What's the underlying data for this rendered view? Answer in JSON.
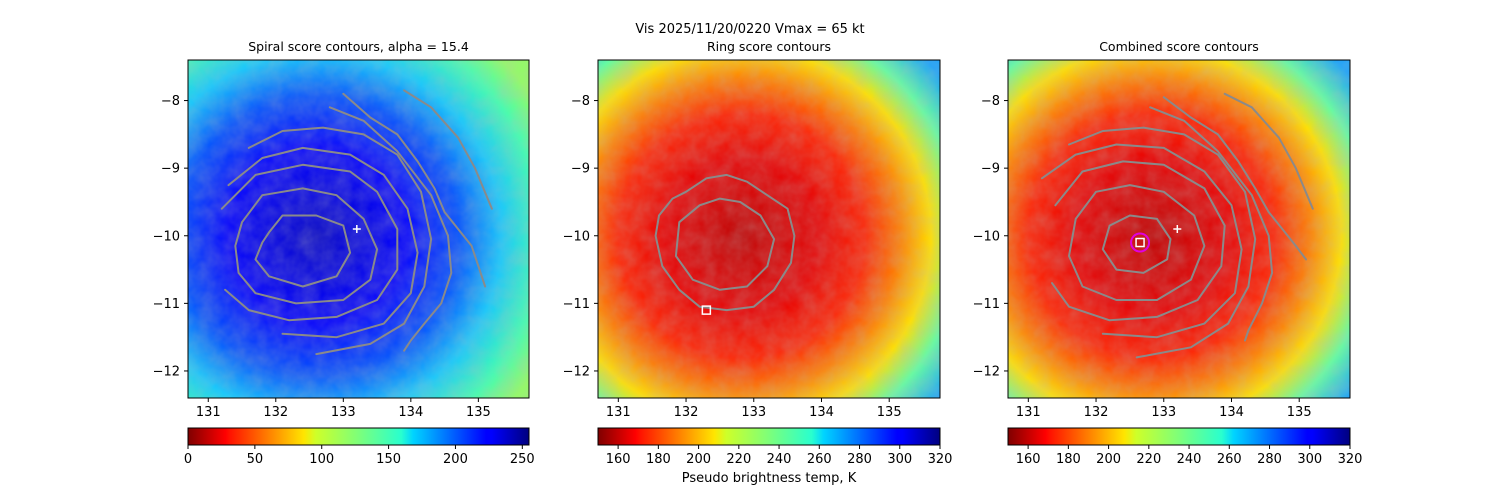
{
  "suptitle": "Vis  2025/11/20/0220    Vmax = 65 kt",
  "colors": {
    "contour": "#8a8a8a",
    "center_marker": "#ffffff",
    "ring_circle": "#e000e0"
  },
  "chart_data": [
    {
      "type": "heatmap",
      "title": "Spiral score contours, alpha = 15.4",
      "colormap": "jet",
      "xlim": [
        130.7,
        135.75
      ],
      "ylim": [
        -12.4,
        -7.4
      ],
      "xticks": [
        131,
        132,
        133,
        134,
        135
      ],
      "yticks": [
        -8,
        -9,
        -10,
        -11,
        -12
      ],
      "colorbar": {
        "ticks": [
          0,
          50,
          100,
          150,
          200,
          250
        ],
        "range": [
          0,
          255
        ],
        "reversed": true,
        "label": ""
      },
      "background": "blue",
      "markers": [
        {
          "type": "plus",
          "x": 133.2,
          "y": -9.9
        }
      ],
      "contours": [
        {
          "level": 1,
          "x": [
            131.9,
            132.1,
            132.6,
            133.0,
            133.1,
            132.9,
            132.4,
            131.9,
            131.7,
            131.8,
            131.9
          ],
          "y": [
            -9.95,
            -9.7,
            -9.7,
            -9.85,
            -10.25,
            -10.6,
            -10.75,
            -10.6,
            -10.35,
            -10.1,
            -9.95
          ]
        },
        {
          "level": 2,
          "x": [
            131.5,
            131.8,
            132.4,
            132.9,
            133.3,
            133.5,
            133.4,
            133.0,
            132.3,
            131.7,
            131.45,
            131.4,
            131.5
          ],
          "y": [
            -9.8,
            -9.4,
            -9.3,
            -9.4,
            -9.75,
            -10.2,
            -10.65,
            -10.95,
            -11.0,
            -10.85,
            -10.55,
            -10.15,
            -9.8
          ]
        },
        {
          "level": 3,
          "x": [
            131.2,
            131.7,
            132.4,
            133.1,
            133.5,
            133.8,
            133.8,
            133.5,
            132.9,
            132.2,
            131.6,
            131.25
          ],
          "y": [
            -9.6,
            -9.1,
            -8.95,
            -9.05,
            -9.35,
            -9.9,
            -10.5,
            -10.95,
            -11.2,
            -11.25,
            -11.1,
            -10.8
          ]
        },
        {
          "level": 4,
          "x": [
            131.3,
            131.8,
            132.4,
            133.1,
            133.6,
            133.95,
            134.1,
            134.0,
            133.6,
            132.9,
            132.1
          ],
          "y": [
            -9.25,
            -8.85,
            -8.7,
            -8.8,
            -9.1,
            -9.6,
            -10.25,
            -10.85,
            -11.3,
            -11.5,
            -11.45
          ]
        },
        {
          "level": 5,
          "x": [
            131.6,
            132.1,
            132.7,
            133.3,
            133.8,
            134.15,
            134.3,
            134.2,
            133.9,
            133.4,
            132.6
          ],
          "y": [
            -8.7,
            -8.45,
            -8.4,
            -8.5,
            -8.8,
            -9.35,
            -10.05,
            -10.75,
            -11.3,
            -11.6,
            -11.75
          ]
        },
        {
          "level": 6,
          "x": [
            132.8,
            133.3,
            133.8,
            134.3,
            134.55,
            134.6,
            134.45,
            134.2,
            134.0,
            133.9
          ],
          "y": [
            -8.1,
            -8.3,
            -8.75,
            -9.4,
            -10.0,
            -10.55,
            -11.0,
            -11.3,
            -11.55,
            -11.7
          ]
        },
        {
          "level": 7,
          "x": [
            133.0,
            133.4,
            133.8,
            134.1,
            134.35,
            134.5,
            134.7,
            134.9,
            135.0,
            135.1
          ],
          "y": [
            -7.9,
            -8.25,
            -8.5,
            -8.9,
            -9.3,
            -9.65,
            -9.9,
            -10.15,
            -10.45,
            -10.75
          ]
        },
        {
          "level": 8,
          "x": [
            133.9,
            134.3,
            134.7,
            134.95,
            135.2
          ],
          "y": [
            -7.85,
            -8.1,
            -8.55,
            -9.0,
            -9.6
          ]
        }
      ]
    },
    {
      "type": "heatmap",
      "title": "Ring score contours",
      "colormap": "jet_r",
      "xlim": [
        130.7,
        135.75
      ],
      "ylim": [
        -12.4,
        -7.4
      ],
      "xticks": [
        131,
        132,
        133,
        134,
        135
      ],
      "yticks": [
        -8,
        -9,
        -10,
        -11,
        -12
      ],
      "colorbar": {
        "ticks": [
          160,
          180,
          200,
          220,
          240,
          260,
          280,
          300,
          320
        ],
        "range": [
          150,
          320
        ],
        "reversed": false,
        "label": "Pseudo brightness temp, K"
      },
      "background": "red",
      "markers": [
        {
          "type": "square",
          "x": 132.3,
          "y": -11.1
        }
      ],
      "contours": [
        {
          "level": 1,
          "x": [
            131.6,
            131.8,
            132.0,
            132.3,
            132.6,
            132.9,
            133.2,
            133.5,
            133.6,
            133.55,
            133.3,
            133.0,
            132.6,
            132.2,
            131.9,
            131.65,
            131.55,
            131.6
          ],
          "y": [
            -9.7,
            -9.45,
            -9.35,
            -9.15,
            -9.1,
            -9.2,
            -9.4,
            -9.6,
            -10.0,
            -10.4,
            -10.8,
            -11.05,
            -11.1,
            -11.05,
            -10.8,
            -10.45,
            -10.0,
            -9.7
          ]
        },
        {
          "level": 2,
          "x": [
            131.9,
            132.2,
            132.5,
            132.8,
            133.1,
            133.3,
            133.2,
            132.9,
            132.5,
            132.1,
            131.85,
            131.9
          ],
          "y": [
            -9.8,
            -9.55,
            -9.45,
            -9.5,
            -9.7,
            -10.05,
            -10.45,
            -10.75,
            -10.8,
            -10.65,
            -10.3,
            -9.8
          ]
        }
      ]
    },
    {
      "type": "heatmap",
      "title": "Combined score contours",
      "colormap": "jet_r",
      "xlim": [
        130.7,
        135.75
      ],
      "ylim": [
        -12.4,
        -7.4
      ],
      "xticks": [
        131,
        132,
        133,
        134,
        135
      ],
      "yticks": [
        -8,
        -9,
        -10,
        -11,
        -12
      ],
      "colorbar": {
        "ticks": [
          160,
          180,
          200,
          220,
          240,
          260,
          280,
          300,
          320
        ],
        "range": [
          150,
          320
        ],
        "reversed": false,
        "label": ""
      },
      "background": "red",
      "markers": [
        {
          "type": "plus",
          "x": 133.2,
          "y": -9.9
        },
        {
          "type": "square",
          "x": 132.65,
          "y": -10.1
        },
        {
          "type": "circle",
          "x": 132.65,
          "y": -10.1
        }
      ],
      "contours": [
        {
          "level": 1,
          "x": [
            132.2,
            132.5,
            132.9,
            133.1,
            133.05,
            132.7,
            132.3,
            132.1,
            132.2
          ],
          "y": [
            -9.85,
            -9.7,
            -9.75,
            -10.05,
            -10.35,
            -10.55,
            -10.5,
            -10.2,
            -9.85
          ]
        },
        {
          "level": 2,
          "x": [
            131.7,
            132.0,
            132.5,
            133.0,
            133.45,
            133.6,
            133.4,
            132.9,
            132.3,
            131.8,
            131.6,
            131.7
          ],
          "y": [
            -9.75,
            -9.35,
            -9.25,
            -9.35,
            -9.7,
            -10.15,
            -10.65,
            -10.95,
            -10.95,
            -10.75,
            -10.3,
            -9.75
          ]
        },
        {
          "level": 3,
          "x": [
            131.4,
            131.8,
            132.4,
            133.0,
            133.6,
            133.9,
            133.85,
            133.5,
            132.9,
            132.2,
            131.6,
            131.35
          ],
          "y": [
            -9.55,
            -9.05,
            -8.9,
            -8.95,
            -9.3,
            -9.85,
            -10.45,
            -10.95,
            -11.2,
            -11.25,
            -11.05,
            -10.7
          ]
        },
        {
          "level": 4,
          "x": [
            131.2,
            131.7,
            132.3,
            133.0,
            133.6,
            134.0,
            134.15,
            134.05,
            133.6,
            132.9,
            132.1
          ],
          "y": [
            -9.15,
            -8.8,
            -8.65,
            -8.7,
            -9.05,
            -9.55,
            -10.2,
            -10.85,
            -11.3,
            -11.5,
            -11.45
          ]
        },
        {
          "level": 5,
          "x": [
            131.6,
            132.1,
            132.7,
            133.3,
            133.8,
            134.2,
            134.35,
            134.25,
            133.95,
            133.4,
            132.6
          ],
          "y": [
            -8.65,
            -8.45,
            -8.4,
            -8.5,
            -8.8,
            -9.35,
            -10.05,
            -10.75,
            -11.3,
            -11.65,
            -11.8
          ]
        },
        {
          "level": 6,
          "x": [
            132.8,
            133.3,
            133.8,
            134.3,
            134.55,
            134.6,
            134.45,
            134.25,
            134.2
          ],
          "y": [
            -8.1,
            -8.3,
            -8.75,
            -9.4,
            -10.0,
            -10.55,
            -11.0,
            -11.4,
            -11.55
          ]
        },
        {
          "level": 7,
          "x": [
            133.0,
            133.4,
            133.8,
            134.1,
            134.35,
            134.55,
            134.75,
            134.95,
            135.1
          ],
          "y": [
            -7.95,
            -8.25,
            -8.5,
            -8.9,
            -9.3,
            -9.65,
            -9.9,
            -10.15,
            -10.35
          ]
        },
        {
          "level": 8,
          "x": [
            133.9,
            134.3,
            134.7,
            134.95,
            135.2
          ],
          "y": [
            -7.9,
            -8.1,
            -8.55,
            -9.0,
            -9.6
          ]
        }
      ]
    }
  ]
}
